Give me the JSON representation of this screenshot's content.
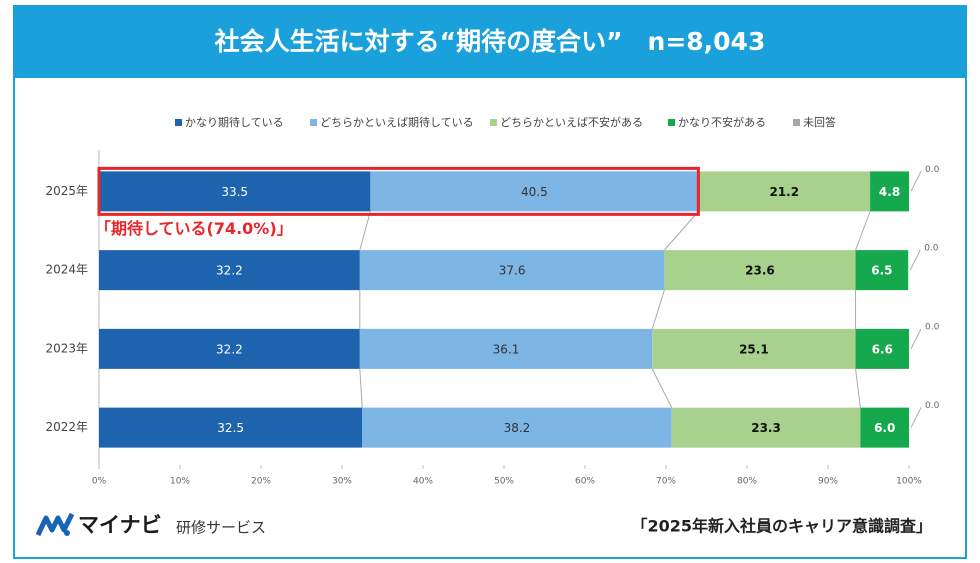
{
  "chart_data": {
    "type": "stacked-bar-horizontal",
    "title": "社会人生活に対する“期待の度合い”　n=8,043",
    "categories": [
      "2025年",
      "2024年",
      "2023年",
      "2022年"
    ],
    "series": [
      {
        "name": "かなり期待している",
        "color": "#1e63ad",
        "values": [
          33.5,
          32.2,
          32.2,
          32.5
        ]
      },
      {
        "name": "どちらかといえば期待している",
        "color": "#7db5e5",
        "values": [
          40.5,
          37.6,
          36.1,
          38.2
        ]
      },
      {
        "name": "どちらかといえば不安がある",
        "color": "#a9d18e",
        "values": [
          21.2,
          23.6,
          25.1,
          23.3
        ]
      },
      {
        "name": "かなり不安がある",
        "color": "#16a84c",
        "values": [
          4.8,
          6.5,
          6.6,
          6.0
        ],
        "value_labels": [
          "4.8",
          "6.5",
          "6.6",
          "6.0"
        ]
      },
      {
        "name": "未回答",
        "color": "#a6a6a6",
        "values": [
          0,
          0,
          0,
          0
        ],
        "value_labels": [
          "0.0",
          "0.0",
          "0.0",
          "0.0"
        ]
      }
    ],
    "xlim": [
      0,
      100
    ],
    "xticks": [
      {
        "value": 0,
        "label": "0%"
      },
      {
        "value": 10,
        "label": "10%"
      },
      {
        "value": 20,
        "label": "20%"
      },
      {
        "value": 30,
        "label": "30%"
      },
      {
        "value": 40,
        "label": "40%"
      },
      {
        "value": 50,
        "label": "50%"
      },
      {
        "value": 60,
        "label": "60%"
      },
      {
        "value": 70,
        "label": "70%"
      },
      {
        "value": 80,
        "label": "80%"
      },
      {
        "value": 90,
        "label": "90%"
      },
      {
        "value": 100,
        "label": "100%"
      }
    ],
    "annotation": "「期待している(74.0%)」",
    "highlight_color": "#e8262a"
  },
  "footer": {
    "logo": "マイナビ",
    "logo_sub": "研修サービス",
    "survey": "「2025年新入社員のキャリア意識調査」"
  }
}
